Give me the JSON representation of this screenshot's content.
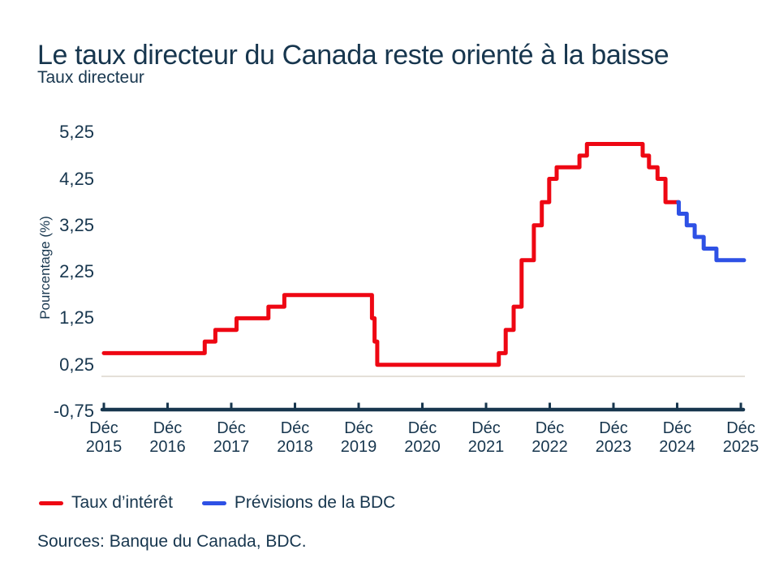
{
  "page": {
    "title": "Le taux directeur du Canada reste orienté à la baisse",
    "subtitle": "Taux directeur",
    "source": "Sources: Banque du Canada, BDC."
  },
  "colors": {
    "navy_text": "#17364e",
    "interest_rate_red": "#ee0713",
    "forecast_blue": "#2e51e5",
    "zero_gridline_gray": "#e4e0d8"
  },
  "chart_data": {
    "type": "line",
    "subtype": "step-after",
    "title": "Le taux directeur du Canada reste orienté à la baisse",
    "subtitle": "Taux directeur",
    "ylabel": "Pourcentage (%)",
    "xlabel": "",
    "x_unit": "months since Dec 2015",
    "ylim": [
      -0.75,
      5.5
    ],
    "xlim_months": [
      0,
      120.6
    ],
    "grid": "single light horizontal line at 0 only",
    "zero_line_value": 0,
    "legend_position": "below chart, bottom-left",
    "y_ticks": [
      {
        "value": 5.25,
        "label": "5,25"
      },
      {
        "value": 4.25,
        "label": "4,25"
      },
      {
        "value": 3.25,
        "label": "3,25"
      },
      {
        "value": 2.25,
        "label": "2,25"
      },
      {
        "value": 1.25,
        "label": "1,25"
      },
      {
        "value": 0.25,
        "label": "0,25"
      },
      {
        "value": -0.75,
        "label": "-0,75"
      }
    ],
    "x_ticks": [
      {
        "month": 0,
        "line1": "Déc",
        "line2": "2015"
      },
      {
        "month": 12,
        "line1": "Déc",
        "line2": "2016"
      },
      {
        "month": 24,
        "line1": "Déc",
        "line2": "2017"
      },
      {
        "month": 36,
        "line1": "Déc",
        "line2": "2018"
      },
      {
        "month": 48,
        "line1": "Déc",
        "line2": "2019"
      },
      {
        "month": 60,
        "line1": "Déc",
        "line2": "2020"
      },
      {
        "month": 72,
        "line1": "Déc",
        "line2": "2021"
      },
      {
        "month": 84,
        "line1": "Déc",
        "line2": "2022"
      },
      {
        "month": 96,
        "line1": "Déc",
        "line2": "2023"
      },
      {
        "month": 108,
        "line1": "Déc",
        "line2": "2024"
      },
      {
        "month": 120,
        "line1": "Déc",
        "line2": "2025"
      }
    ],
    "series": [
      {
        "name": "Taux d’intérêt",
        "color": "#ee0713",
        "style": "step-after",
        "points_month_value": [
          [
            0,
            0.5
          ],
          [
            19,
            0.75
          ],
          [
            21,
            1.0
          ],
          [
            25,
            1.25
          ],
          [
            31,
            1.5
          ],
          [
            34,
            1.75
          ],
          [
            50.5,
            1.25
          ],
          [
            51,
            0.75
          ],
          [
            51.5,
            0.25
          ],
          [
            74.4,
            0.5
          ],
          [
            75.7,
            1.0
          ],
          [
            77.2,
            1.5
          ],
          [
            78.7,
            2.5
          ],
          [
            81,
            3.25
          ],
          [
            82.5,
            3.75
          ],
          [
            83.9,
            4.25
          ],
          [
            85.3,
            4.5
          ],
          [
            89.6,
            4.75
          ],
          [
            91,
            5.0
          ],
          [
            101.5,
            4.75
          ],
          [
            102.7,
            4.5
          ],
          [
            104.3,
            4.25
          ],
          [
            105.8,
            3.75
          ]
        ],
        "end_month": 108.2
      },
      {
        "name": "Prévisions de la BDC",
        "color": "#2e51e5",
        "style": "step-after",
        "points_month_value": [
          [
            108.2,
            3.75
          ],
          [
            108.3,
            3.5
          ],
          [
            109.8,
            3.25
          ],
          [
            111.3,
            3.0
          ],
          [
            113.0,
            2.75
          ],
          [
            115.4,
            2.5
          ]
        ],
        "end_month": 120.6
      }
    ]
  }
}
